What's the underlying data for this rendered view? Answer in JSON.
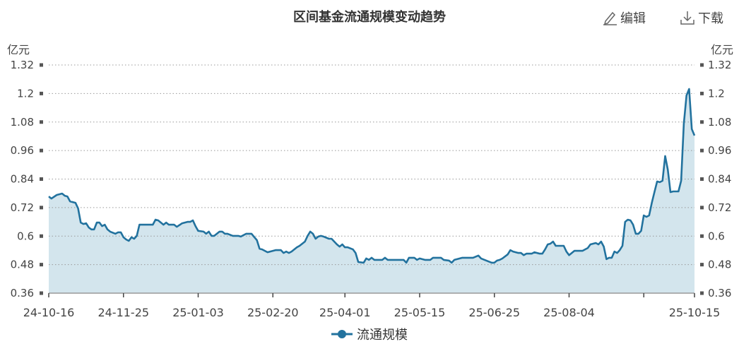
{
  "chart_data": {
    "type": "area",
    "title": "区间基金流通规模变动趋势",
    "ylabel_left": "亿元",
    "ylabel_right": "亿元",
    "ylim": [
      0.36,
      1.32
    ],
    "yticks": [
      "1.32",
      "1.2",
      "1.08",
      "0.96",
      "0.84",
      "0.72",
      "0.6",
      "0.48",
      "0.36"
    ],
    "xlim": [
      0,
      242
    ],
    "xticks": [
      {
        "i": 0,
        "label": "24-10-16"
      },
      {
        "i": 28,
        "label": "24-11-25"
      },
      {
        "i": 56,
        "label": "25-01-03"
      },
      {
        "i": 84,
        "label": "25-02-20"
      },
      {
        "i": 111,
        "label": "25-04-01"
      },
      {
        "i": 139,
        "label": "25-05-15"
      },
      {
        "i": 167,
        "label": "25-06-25"
      },
      {
        "i": 195,
        "label": "25-08-04"
      },
      {
        "i": 223,
        "label": ""
      },
      {
        "i": 242,
        "label": "25-10-15"
      }
    ],
    "grid": true,
    "legend_position": "bottom",
    "series": [
      {
        "name": "流通规模",
        "color": "#22729e",
        "fill": "#d3e5ed",
        "points": [
          [
            0,
            0.767
          ],
          [
            1,
            0.758
          ],
          [
            3,
            0.773
          ],
          [
            5,
            0.779
          ],
          [
            6,
            0.77
          ],
          [
            7,
            0.767
          ],
          [
            8,
            0.746
          ],
          [
            10,
            0.74
          ],
          [
            11,
            0.717
          ],
          [
            12,
            0.657
          ],
          [
            13,
            0.651
          ],
          [
            14,
            0.654
          ],
          [
            15,
            0.636
          ],
          [
            16,
            0.628
          ],
          [
            17,
            0.628
          ],
          [
            18,
            0.657
          ],
          [
            19,
            0.657
          ],
          [
            20,
            0.642
          ],
          [
            21,
            0.648
          ],
          [
            22,
            0.628
          ],
          [
            23,
            0.619
          ],
          [
            25,
            0.61
          ],
          [
            26,
            0.616
          ],
          [
            27,
            0.616
          ],
          [
            28,
            0.595
          ],
          [
            29,
            0.586
          ],
          [
            30,
            0.58
          ],
          [
            31,
            0.595
          ],
          [
            32,
            0.589
          ],
          [
            33,
            0.601
          ],
          [
            34,
            0.648
          ],
          [
            35,
            0.648
          ],
          [
            39,
            0.648
          ],
          [
            40,
            0.669
          ],
          [
            41,
            0.666
          ],
          [
            43,
            0.648
          ],
          [
            44,
            0.657
          ],
          [
            45,
            0.648
          ],
          [
            47,
            0.648
          ],
          [
            48,
            0.639
          ],
          [
            50,
            0.654
          ],
          [
            52,
            0.66
          ],
          [
            53,
            0.66
          ],
          [
            54,
            0.666
          ],
          [
            55,
            0.642
          ],
          [
            56,
            0.622
          ],
          [
            58,
            0.619
          ],
          [
            59,
            0.61
          ],
          [
            60,
            0.619
          ],
          [
            61,
            0.601
          ],
          [
            62,
            0.601
          ],
          [
            64,
            0.619
          ],
          [
            65,
            0.619
          ],
          [
            66,
            0.61
          ],
          [
            67,
            0.61
          ],
          [
            69,
            0.601
          ],
          [
            71,
            0.601
          ],
          [
            72,
            0.598
          ],
          [
            74,
            0.61
          ],
          [
            76,
            0.61
          ],
          [
            78,
            0.583
          ],
          [
            79,
            0.547
          ],
          [
            80,
            0.544
          ],
          [
            82,
            0.532
          ],
          [
            83,
            0.535
          ],
          [
            85,
            0.541
          ],
          [
            87,
            0.541
          ],
          [
            88,
            0.529
          ],
          [
            89,
            0.535
          ],
          [
            90,
            0.529
          ],
          [
            91,
            0.535
          ],
          [
            93,
            0.553
          ],
          [
            94,
            0.559
          ],
          [
            96,
            0.577
          ],
          [
            97,
            0.601
          ],
          [
            98,
            0.619
          ],
          [
            99,
            0.61
          ],
          [
            100,
            0.589
          ],
          [
            101,
            0.598
          ],
          [
            102,
            0.601
          ],
          [
            103,
            0.598
          ],
          [
            105,
            0.589
          ],
          [
            106,
            0.589
          ],
          [
            107,
            0.577
          ],
          [
            108,
            0.565
          ],
          [
            109,
            0.556
          ],
          [
            110,
            0.565
          ],
          [
            111,
            0.553
          ],
          [
            112,
            0.553
          ],
          [
            114,
            0.544
          ],
          [
            115,
            0.529
          ],
          [
            116,
            0.491
          ],
          [
            118,
            0.488
          ],
          [
            119,
            0.506
          ],
          [
            120,
            0.5
          ],
          [
            121,
            0.509
          ],
          [
            122,
            0.5
          ],
          [
            125,
            0.5
          ],
          [
            126,
            0.509
          ],
          [
            127,
            0.5
          ],
          [
            133,
            0.5
          ],
          [
            134,
            0.488
          ],
          [
            135,
            0.509
          ],
          [
            137,
            0.509
          ],
          [
            138,
            0.5
          ],
          [
            139,
            0.506
          ],
          [
            141,
            0.5
          ],
          [
            143,
            0.5
          ],
          [
            144,
            0.509
          ],
          [
            147,
            0.509
          ],
          [
            148,
            0.5
          ],
          [
            150,
            0.497
          ],
          [
            151,
            0.488
          ],
          [
            152,
            0.5
          ],
          [
            155,
            0.509
          ],
          [
            159,
            0.509
          ],
          [
            161,
            0.518
          ],
          [
            162,
            0.506
          ],
          [
            164,
            0.497
          ],
          [
            166,
            0.488
          ],
          [
            167,
            0.488
          ],
          [
            168,
            0.497
          ],
          [
            169,
            0.5
          ],
          [
            170,
            0.506
          ],
          [
            172,
            0.523
          ],
          [
            173,
            0.541
          ],
          [
            174,
            0.535
          ],
          [
            176,
            0.529
          ],
          [
            177,
            0.529
          ],
          [
            178,
            0.52
          ],
          [
            179,
            0.526
          ],
          [
            181,
            0.526
          ],
          [
            182,
            0.532
          ],
          [
            184,
            0.526
          ],
          [
            185,
            0.526
          ],
          [
            186,
            0.544
          ],
          [
            187,
            0.565
          ],
          [
            188,
            0.568
          ],
          [
            189,
            0.577
          ],
          [
            190,
            0.559
          ],
          [
            193,
            0.559
          ],
          [
            194,
            0.535
          ],
          [
            195,
            0.52
          ],
          [
            196,
            0.529
          ],
          [
            197,
            0.538
          ],
          [
            200,
            0.538
          ],
          [
            202,
            0.55
          ],
          [
            203,
            0.565
          ],
          [
            205,
            0.571
          ],
          [
            206,
            0.565
          ],
          [
            207,
            0.577
          ],
          [
            208,
            0.556
          ],
          [
            209,
            0.503
          ],
          [
            210,
            0.509
          ],
          [
            211,
            0.509
          ],
          [
            212,
            0.535
          ],
          [
            213,
            0.529
          ],
          [
            214,
            0.541
          ],
          [
            215,
            0.559
          ],
          [
            216,
            0.66
          ],
          [
            217,
            0.669
          ],
          [
            218,
            0.666
          ],
          [
            219,
            0.648
          ],
          [
            220,
            0.61
          ],
          [
            221,
            0.61
          ],
          [
            222,
            0.622
          ],
          [
            223,
            0.687
          ],
          [
            224,
            0.681
          ],
          [
            225,
            0.687
          ],
          [
            226,
            0.74
          ],
          [
            227,
            0.785
          ],
          [
            228,
            0.83
          ],
          [
            229,
            0.827
          ],
          [
            230,
            0.833
          ],
          [
            231,
            0.937
          ],
          [
            232,
            0.88
          ],
          [
            233,
            0.785
          ],
          [
            234,
            0.788
          ],
          [
            236,
            0.788
          ],
          [
            237,
            0.833
          ],
          [
            238,
            1.073
          ],
          [
            239,
            1.192
          ],
          [
            240,
            1.219
          ],
          [
            241,
            1.05
          ],
          [
            242,
            1.023
          ]
        ]
      }
    ]
  },
  "toolbar": {
    "edit_label": "编辑",
    "download_label": "下载"
  }
}
